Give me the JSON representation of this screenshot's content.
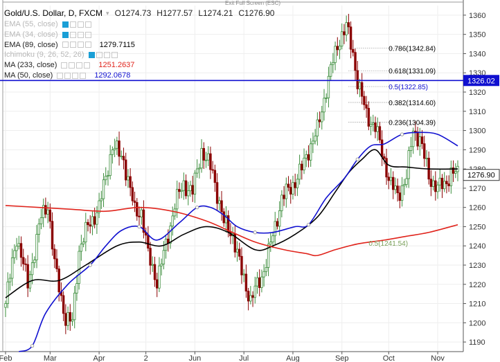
{
  "header": {
    "symbol": "Gold/U.S. Dollar, D, FXCM",
    "open": "O1274.73",
    "high": "H1277.57",
    "low": "L1274.21",
    "close": "C1276.90",
    "exit_fullscreen": "Exit Full Screen (ESC)"
  },
  "indicators": [
    {
      "label": "EMA (55, close)",
      "value": "",
      "active": false,
      "color": "#b8b8b8"
    },
    {
      "label": "EMA (34, close)",
      "value": "",
      "active": false,
      "color": "#b8b8b8"
    },
    {
      "label": "EMA (89, close)",
      "value": "1279.7115",
      "active": true,
      "color": "#000000"
    },
    {
      "label": "Ichimoku (9, 26, 52, 26)",
      "value": "",
      "active": false,
      "color": "#b8b8b8"
    },
    {
      "label": "MA (233, close)",
      "value": "1251.2637",
      "active": true,
      "color": "#e0231b"
    },
    {
      "label": "MA (50, close)",
      "value": "1292.0678",
      "active": true,
      "color": "#1010d0"
    }
  ],
  "chart_data": {
    "type": "candlestick",
    "ylim": [
      1185,
      1365
    ],
    "y_ticks": [
      1190,
      1200,
      1210,
      1220,
      1230,
      1240,
      1250,
      1260,
      1270,
      1280,
      1290,
      1300,
      1310,
      1320,
      1330,
      1340,
      1350,
      1360
    ],
    "x_labels": [
      {
        "label": "Feb",
        "index": 0
      },
      {
        "label": "Mar",
        "index": 20
      },
      {
        "label": "Apr",
        "index": 42
      },
      {
        "label": "2",
        "index": 63
      },
      {
        "label": "Jun",
        "index": 85
      },
      {
        "label": "Jul",
        "index": 107
      },
      {
        "label": "Aug",
        "index": 129
      },
      {
        "label": "Sep",
        "index": 151
      },
      {
        "label": "Oct",
        "index": 172
      },
      {
        "label": "Nov",
        "index": 194
      }
    ],
    "n_bars": 204,
    "anchors": [
      [
        0,
        1210
      ],
      [
        5,
        1245
      ],
      [
        10,
        1220
      ],
      [
        16,
        1255
      ],
      [
        19,
        1262
      ],
      [
        22,
        1230
      ],
      [
        27,
        1202
      ],
      [
        30,
        1200
      ],
      [
        33,
        1238
      ],
      [
        37,
        1250
      ],
      [
        42,
        1260
      ],
      [
        48,
        1292
      ],
      [
        53,
        1285
      ],
      [
        58,
        1258
      ],
      [
        61,
        1258
      ],
      [
        64,
        1235
      ],
      [
        68,
        1222
      ],
      [
        72,
        1240
      ],
      [
        76,
        1262
      ],
      [
        80,
        1272
      ],
      [
        84,
        1268
      ],
      [
        88,
        1290
      ],
      [
        93,
        1278
      ],
      [
        98,
        1252
      ],
      [
        102,
        1246
      ],
      [
        106,
        1226
      ],
      [
        110,
        1212
      ],
      [
        115,
        1224
      ],
      [
        120,
        1245
      ],
      [
        124,
        1265
      ],
      [
        128,
        1270
      ],
      [
        133,
        1280
      ],
      [
        136,
        1290
      ],
      [
        140,
        1300
      ],
      [
        144,
        1322
      ],
      [
        147,
        1336
      ],
      [
        150,
        1348
      ],
      [
        153,
        1354
      ],
      [
        156,
        1340
      ],
      [
        158,
        1326
      ],
      [
        162,
        1308
      ],
      [
        166,
        1302
      ],
      [
        170,
        1284
      ],
      [
        173,
        1272
      ],
      [
        176,
        1266
      ],
      [
        180,
        1276
      ],
      [
        183,
        1300
      ],
      [
        186,
        1296
      ],
      [
        190,
        1276
      ],
      [
        194,
        1270
      ],
      [
        197,
        1272
      ],
      [
        200,
        1278
      ],
      [
        203,
        1277
      ]
    ],
    "series": [
      {
        "name": "EMA (89, close)",
        "color": "#000000",
        "points": [
          [
            0,
            1213
          ],
          [
            12,
            1222
          ],
          [
            24,
            1222
          ],
          [
            36,
            1230
          ],
          [
            50,
            1240
          ],
          [
            60,
            1242
          ],
          [
            70,
            1240
          ],
          [
            80,
            1246
          ],
          [
            90,
            1250
          ],
          [
            100,
            1247
          ],
          [
            112,
            1238
          ],
          [
            120,
            1240
          ],
          [
            130,
            1246
          ],
          [
            140,
            1255
          ],
          [
            148,
            1268
          ],
          [
            154,
            1278
          ],
          [
            160,
            1285
          ],
          [
            166,
            1290
          ],
          [
            172,
            1282
          ],
          [
            180,
            1281
          ],
          [
            190,
            1280
          ],
          [
            203,
            1280
          ]
        ]
      },
      {
        "name": "MA (233, close)",
        "color": "#e0231b",
        "points": [
          [
            0,
            1261
          ],
          [
            15,
            1260
          ],
          [
            30,
            1259
          ],
          [
            45,
            1258
          ],
          [
            60,
            1260
          ],
          [
            75,
            1258
          ],
          [
            90,
            1253
          ],
          [
            100,
            1248
          ],
          [
            112,
            1242
          ],
          [
            125,
            1238
          ],
          [
            135,
            1236
          ],
          [
            140,
            1235
          ],
          [
            148,
            1238
          ],
          [
            158,
            1241
          ],
          [
            170,
            1243
          ],
          [
            180,
            1245
          ],
          [
            190,
            1247
          ],
          [
            203,
            1251
          ]
        ]
      },
      {
        "name": "MA (50, close)",
        "color": "#1010d0",
        "points": [
          [
            6,
            1185
          ],
          [
            12,
            1188
          ],
          [
            18,
            1205
          ],
          [
            28,
            1220
          ],
          [
            38,
            1230
          ],
          [
            45,
            1240
          ],
          [
            52,
            1248
          ],
          [
            60,
            1250
          ],
          [
            68,
            1243
          ],
          [
            78,
            1252
          ],
          [
            86,
            1260
          ],
          [
            92,
            1260
          ],
          [
            98,
            1256
          ],
          [
            104,
            1250
          ],
          [
            112,
            1247
          ],
          [
            120,
            1247
          ],
          [
            130,
            1250
          ],
          [
            136,
            1251
          ],
          [
            144,
            1265
          ],
          [
            152,
            1275
          ],
          [
            158,
            1285
          ],
          [
            164,
            1292
          ],
          [
            170,
            1293
          ],
          [
            178,
            1298
          ],
          [
            186,
            1299
          ],
          [
            194,
            1298
          ],
          [
            203,
            1292
          ]
        ]
      }
    ],
    "horizontal_line": {
      "value": 1326.02,
      "label": "1326.02",
      "color": "#1010d0"
    },
    "last_price": {
      "value": 1276.9,
      "label": "1276.90"
    },
    "fibonacci": [
      {
        "label": "0.786(1342.84)",
        "value": 1342.84,
        "color": "#000000"
      },
      {
        "label": "0.618(1331.09)",
        "value": 1331.09,
        "color": "#000000"
      },
      {
        "label": "0.5(1322.85)",
        "value": 1322.85,
        "color": "#1010d0"
      },
      {
        "label": "0.382(1314.60)",
        "value": 1314.6,
        "color": "#000000"
      },
      {
        "label": "0.236(1304.39)",
        "value": 1304.39,
        "color": "#000000"
      },
      {
        "label": "0.5(1241.54)",
        "value": 1241.54,
        "color": "#7aa05a"
      }
    ],
    "grid": true,
    "up_color": "#3a8c3a",
    "down_color": "#8b0000"
  }
}
